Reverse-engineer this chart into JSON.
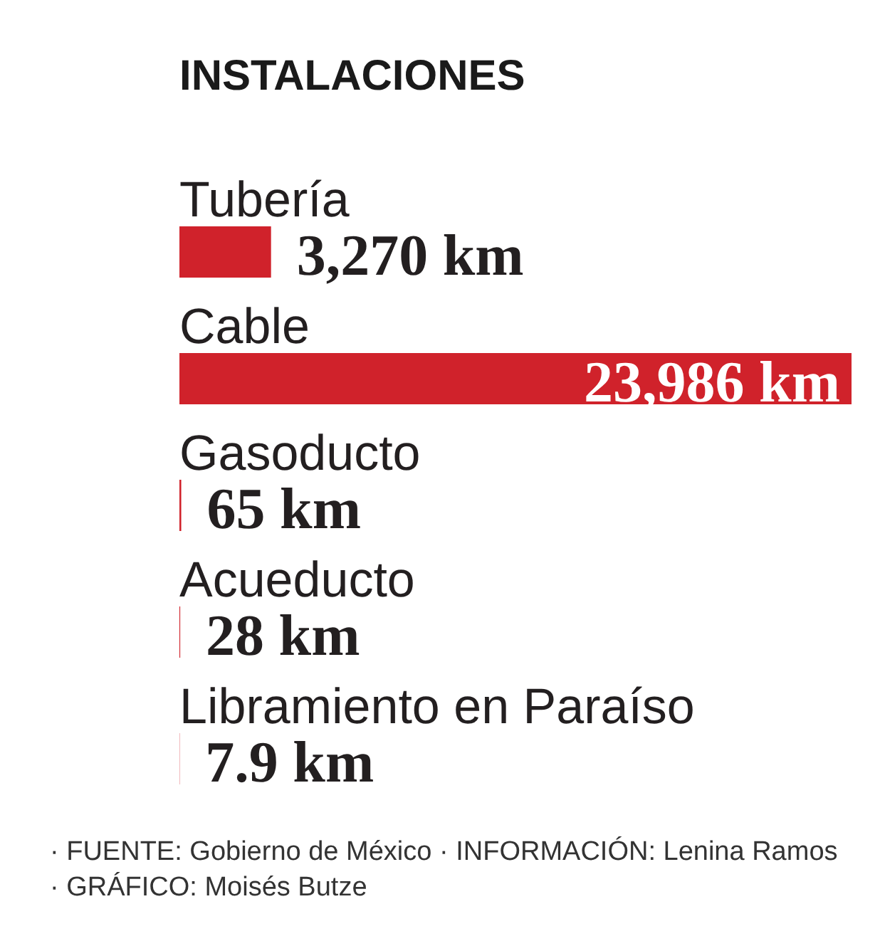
{
  "chart_data": {
    "type": "bar",
    "orientation": "horizontal",
    "title": "INSTALACIONES",
    "categories": [
      "Tubería",
      "Cable",
      "Gasoducto",
      "Acueducto",
      "Libramiento en Paraíso"
    ],
    "values": [
      3270,
      23986,
      65,
      28,
      7.9
    ],
    "color": "#d0222b",
    "value_labels": [
      "3,270 km",
      "23,986 km",
      "65 km",
      "28 km",
      "7.9 km"
    ],
    "tick_labels": "y",
    "annotations": [
      "· FUENTE: Gobierno de México · INFORMACIÓN: Lenina Ramos",
      "· GRÁFICO: Moisés Butze"
    ]
  }
}
